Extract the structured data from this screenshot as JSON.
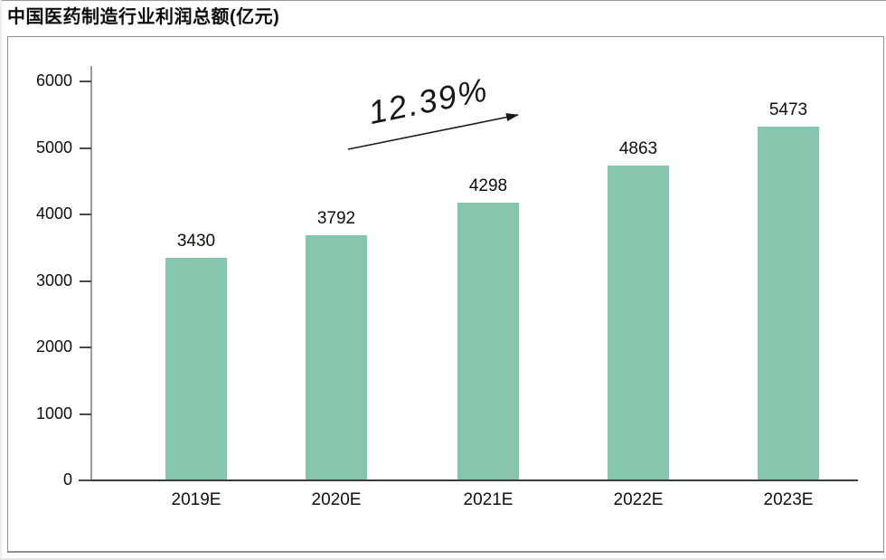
{
  "title": "中国医药制造行业利润总额(亿元)",
  "annotation": {
    "growth_label": "12.39%"
  },
  "chart_data": {
    "type": "bar",
    "title": "中国医药制造行业利润总额(亿元)",
    "categories": [
      "2019E",
      "2020E",
      "2021E",
      "2022E",
      "2023E"
    ],
    "values": [
      3430,
      3792,
      4298,
      4863,
      5473
    ],
    "xlabel": "",
    "ylabel": "",
    "ylim": [
      0,
      6000
    ],
    "yticks": [
      0,
      1000,
      2000,
      3000,
      4000,
      5000,
      6000
    ],
    "grid": false,
    "legend": "none",
    "annotation": {
      "text": "12.39%",
      "meaning": "CAGR growth trend",
      "arrow": "up-right"
    },
    "colors": {
      "bar": "#85C6AC",
      "baseline": "#3d3d3d",
      "y_axis": "#9a9a9a",
      "text": "#0f0f0f"
    }
  }
}
